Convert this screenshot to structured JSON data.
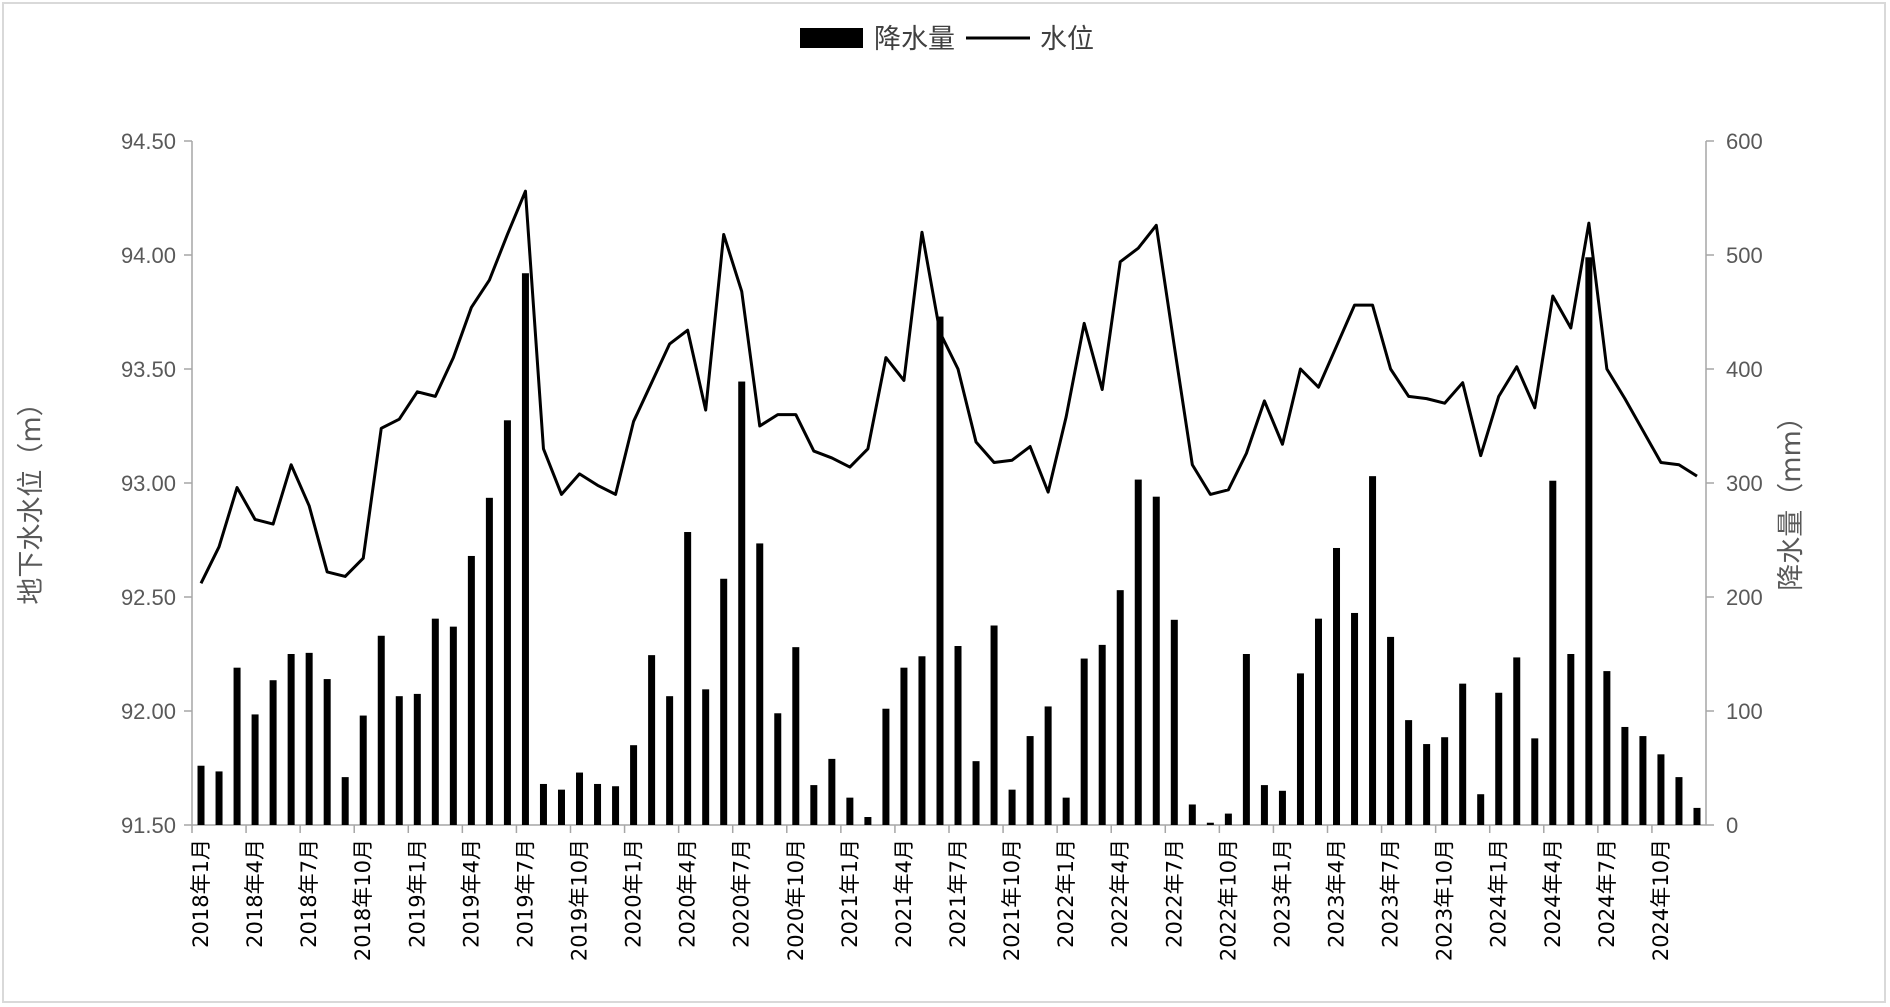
{
  "chart_data": {
    "type": "bar+line",
    "x_tick_labels": [
      "2018年1月",
      "2018年4月",
      "2018年7月",
      "2018年10月",
      "2019年1月",
      "2019年4月",
      "2019年7月",
      "2019年10月",
      "2020年1月",
      "2020年4月",
      "2020年7月",
      "2020年10月",
      "2021年1月",
      "2021年4月",
      "2021年7月",
      "2021年10月",
      "2022年1月",
      "2022年4月",
      "2022年7月",
      "2022年10月",
      "2023年1月",
      "2023年4月",
      "2023年7月",
      "2023年10月",
      "2024年1月",
      "2024年4月",
      "2024年7月",
      "2024年10月"
    ],
    "x_start": "2018-01",
    "legend": [
      "降水量",
      "水位"
    ],
    "legend_position": "top-center",
    "y_left": {
      "label": "地下水水位（m）",
      "range": [
        91.5,
        94.5
      ],
      "ticks": [
        "91.50",
        "92.00",
        "92.50",
        "93.00",
        "93.50",
        "94.00",
        "94.50"
      ]
    },
    "y_right": {
      "label": "降水量（mm）",
      "range": [
        0,
        600
      ],
      "ticks": [
        "0",
        "100",
        "200",
        "300",
        "400",
        "500",
        "600"
      ]
    },
    "series": [
      {
        "name": "降水量",
        "type": "bar",
        "axis": "right",
        "color": "#000000",
        "values": [
          52,
          47,
          138,
          97,
          127,
          150,
          151,
          128,
          42,
          96,
          166,
          113,
          115,
          181,
          174,
          236,
          287,
          355,
          484,
          36,
          31,
          46,
          36,
          34,
          70,
          149,
          113,
          257,
          119,
          216,
          389,
          247,
          98,
          156,
          35,
          58,
          24,
          7,
          102,
          138,
          148,
          446,
          157,
          56,
          175,
          31,
          78,
          104,
          24,
          146,
          158,
          206,
          303,
          288,
          180,
          18,
          2,
          10,
          150,
          35,
          30,
          133,
          181,
          243,
          186,
          306,
          165,
          92,
          71,
          77,
          124,
          27,
          116,
          147,
          76,
          302,
          150,
          498,
          135,
          86,
          78,
          62,
          42,
          15
        ]
      },
      {
        "name": "水位",
        "type": "line",
        "axis": "left",
        "color": "#000000",
        "values": [
          92.56,
          92.72,
          92.98,
          92.84,
          92.82,
          93.08,
          92.9,
          92.61,
          92.59,
          92.67,
          93.24,
          93.28,
          93.4,
          93.38,
          93.55,
          93.77,
          93.89,
          94.09,
          94.28,
          93.15,
          92.95,
          93.04,
          92.99,
          92.95,
          93.27,
          93.44,
          93.61,
          93.67,
          93.32,
          94.09,
          93.84,
          93.25,
          93.3,
          93.3,
          93.14,
          93.11,
          93.07,
          93.15,
          93.55,
          93.45,
          94.1,
          93.66,
          93.5,
          93.18,
          93.09,
          93.1,
          93.16,
          92.96,
          93.29,
          93.7,
          93.41,
          93.97,
          94.03,
          94.13,
          93.6,
          93.08,
          92.95,
          92.97,
          93.13,
          93.36,
          93.17,
          93.5,
          93.42,
          93.6,
          93.78,
          93.78,
          93.5,
          93.38,
          93.37,
          93.35,
          93.44,
          93.12,
          93.38,
          93.51,
          93.33,
          93.82,
          93.68,
          94.14,
          93.5,
          93.37,
          93.23,
          93.09,
          93.08,
          93.03
        ]
      }
    ]
  }
}
